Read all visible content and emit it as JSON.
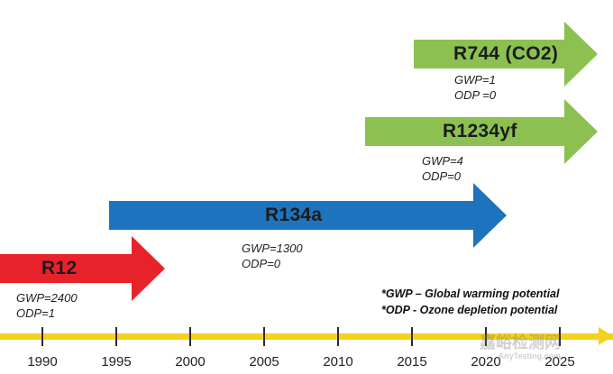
{
  "arrows": [
    {
      "id": "r12",
      "label": "R12",
      "color": "#e8222a",
      "gwp": "GWP=2400",
      "odp": "ODP=1"
    },
    {
      "id": "r134a",
      "label": "R134a",
      "color": "#1e73be",
      "gwp": "GWP=1300",
      "odp": "ODP=0"
    },
    {
      "id": "r1234yf",
      "label": "R1234yf",
      "color": "#8cc152",
      "gwp": "GWP=4",
      "odp": "ODP=0"
    },
    {
      "id": "r744",
      "label": "R744 (CO2)",
      "color": "#8cc152",
      "gwp": "GWP=1",
      "odp": "ODP =0"
    }
  ],
  "legend": {
    "gwp": "*GWP – Global warming potential",
    "odp": "*ODP - Ozone depletion potential"
  },
  "timeline": {
    "color": "#f2d31b",
    "years": [
      "1990",
      "1995",
      "2000",
      "2005",
      "2010",
      "2015",
      "2020",
      "2025"
    ]
  },
  "watermark": {
    "main": "嘉峪检测网",
    "sub": "AnyTesting.com"
  }
}
